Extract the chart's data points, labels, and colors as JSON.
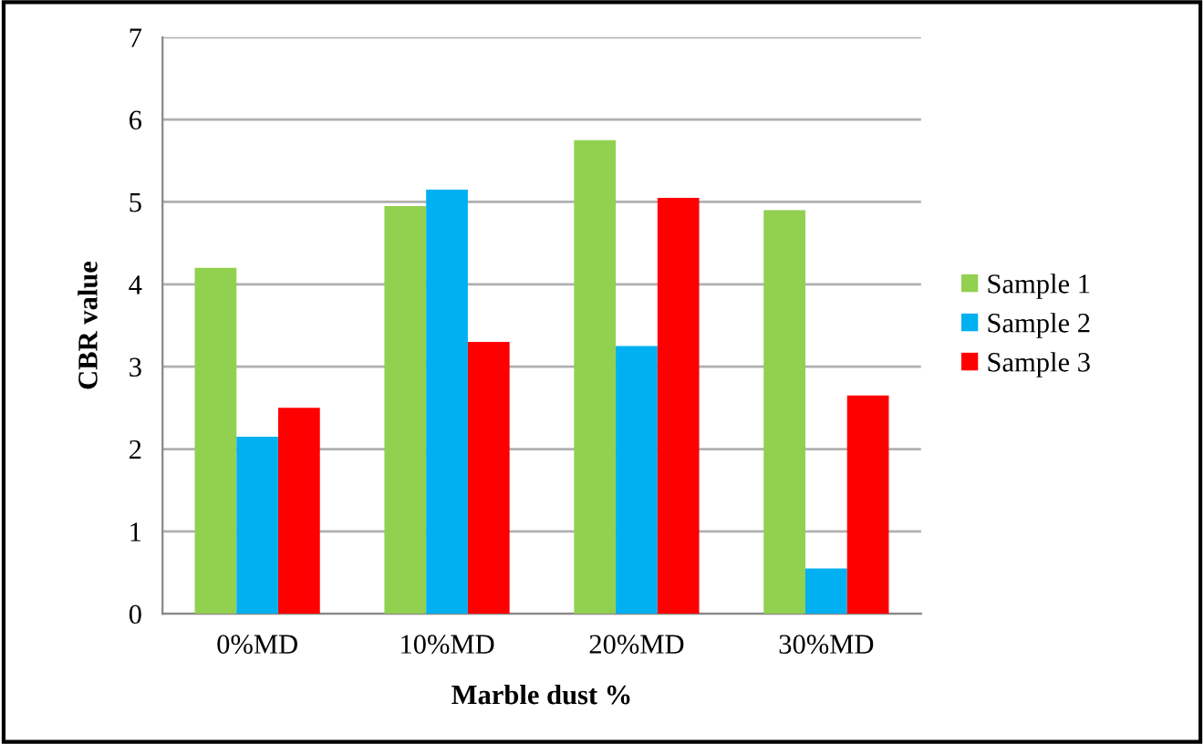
{
  "chart_data": {
    "type": "bar",
    "xlabel": "Marble dust %",
    "ylabel": "CBR value",
    "categories": [
      "0%MD",
      "10%MD",
      "20%MD",
      "30%MD"
    ],
    "series": [
      {
        "name": "Sample 1",
        "color": "#92d050",
        "values": [
          4.2,
          4.95,
          5.75,
          4.9
        ]
      },
      {
        "name": "Sample 2",
        "color": "#00b0f0",
        "values": [
          2.15,
          5.15,
          3.25,
          0.55
        ]
      },
      {
        "name": "Sample 3",
        "color": "#ff0000",
        "values": [
          2.5,
          3.3,
          5.05,
          2.65
        ]
      }
    ],
    "ylim": [
      0,
      7
    ],
    "yticks": [
      0,
      1,
      2,
      3,
      4,
      5,
      6,
      7
    ],
    "grid": "y",
    "legend": "right"
  }
}
